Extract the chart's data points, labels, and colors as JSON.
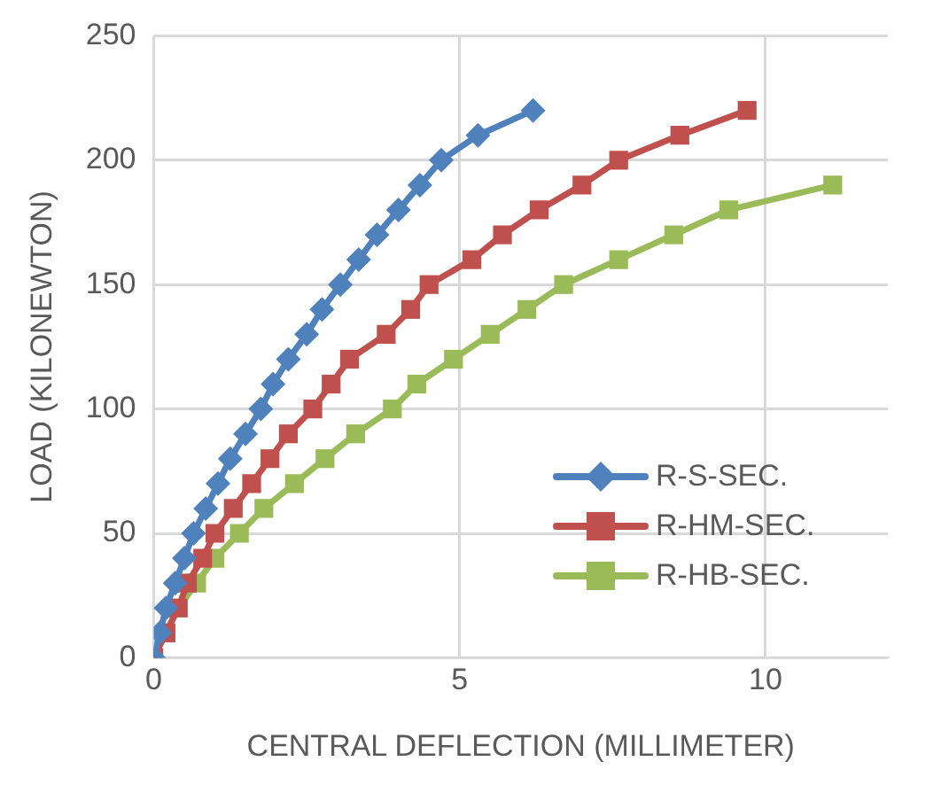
{
  "chart_data": {
    "type": "line",
    "xlabel": "CENTRAL DEFLECTION (MILLIMETER)",
    "ylabel": "LOAD (KILONEWTON)",
    "xlim": [
      0,
      12
    ],
    "xticks": [
      0,
      5,
      10
    ],
    "ylim": [
      0,
      250
    ],
    "yticks": [
      0,
      50,
      100,
      150,
      200,
      250
    ],
    "grid": true,
    "legend": "bottom right",
    "line_style": "solid",
    "series": [
      {
        "name": "R-S-SEC.",
        "color": "#4f81bd",
        "marker": "diamond",
        "x": [
          0,
          0.1,
          0.2,
          0.35,
          0.5,
          0.65,
          0.85,
          1.05,
          1.25,
          1.5,
          1.75,
          1.95,
          2.2,
          2.5,
          2.75,
          3.05,
          3.35,
          3.65,
          4.0,
          4.35,
          4.7,
          5.3,
          6.2
        ],
        "values": [
          0,
          10,
          20,
          30,
          40,
          50,
          60,
          70,
          80,
          90,
          100,
          110,
          120,
          130,
          140,
          150,
          160,
          170,
          180,
          190,
          200,
          210,
          220
        ]
      },
      {
        "name": "R-HM-SEC.",
        "color": "#c0504d",
        "marker": "square",
        "x": [
          0,
          0.2,
          0.4,
          0.55,
          0.8,
          1.0,
          1.3,
          1.6,
          1.9,
          2.2,
          2.6,
          2.9,
          3.2,
          3.8,
          4.2,
          4.5,
          5.2,
          5.7,
          6.3,
          7.0,
          7.6,
          8.6,
          9.7
        ],
        "values": [
          0,
          10,
          20,
          30,
          40,
          50,
          60,
          70,
          80,
          90,
          100,
          110,
          120,
          130,
          140,
          150,
          160,
          170,
          180,
          190,
          200,
          210,
          220
        ]
      },
      {
        "name": "R-HB-SEC.",
        "color": "#9bbb59",
        "marker": "square",
        "x": [
          0,
          0.2,
          0.4,
          0.7,
          1.0,
          1.4,
          1.8,
          2.3,
          2.8,
          3.3,
          3.9,
          4.3,
          4.9,
          5.5,
          6.1,
          6.7,
          7.6,
          8.5,
          9.4,
          11.1
        ],
        "values": [
          0,
          10,
          20,
          30,
          40,
          50,
          60,
          70,
          80,
          90,
          100,
          110,
          120,
          130,
          140,
          150,
          160,
          170,
          180,
          190
        ]
      }
    ]
  }
}
